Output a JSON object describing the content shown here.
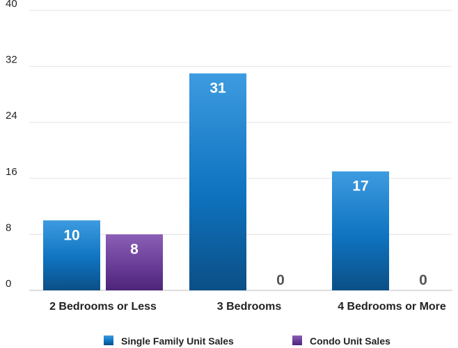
{
  "chart_data": {
    "type": "bar",
    "categories": [
      "2 Bedrooms or Less",
      "3 Bedrooms",
      "4 Bedrooms or More"
    ],
    "series": [
      {
        "name": "Single Family Unit Sales",
        "values": [
          10,
          31,
          17
        ],
        "color": "#1a7fc9"
      },
      {
        "name": "Condo Unit Sales",
        "values": [
          8,
          0,
          0
        ],
        "color": "#6a3d98"
      }
    ],
    "yticks": [
      "0",
      "8",
      "16",
      "24",
      "32",
      "40"
    ],
    "ylim": [
      0,
      40
    ],
    "grid": true,
    "legend_position": "bottom",
    "title": "",
    "xlabel": "",
    "ylabel": ""
  }
}
